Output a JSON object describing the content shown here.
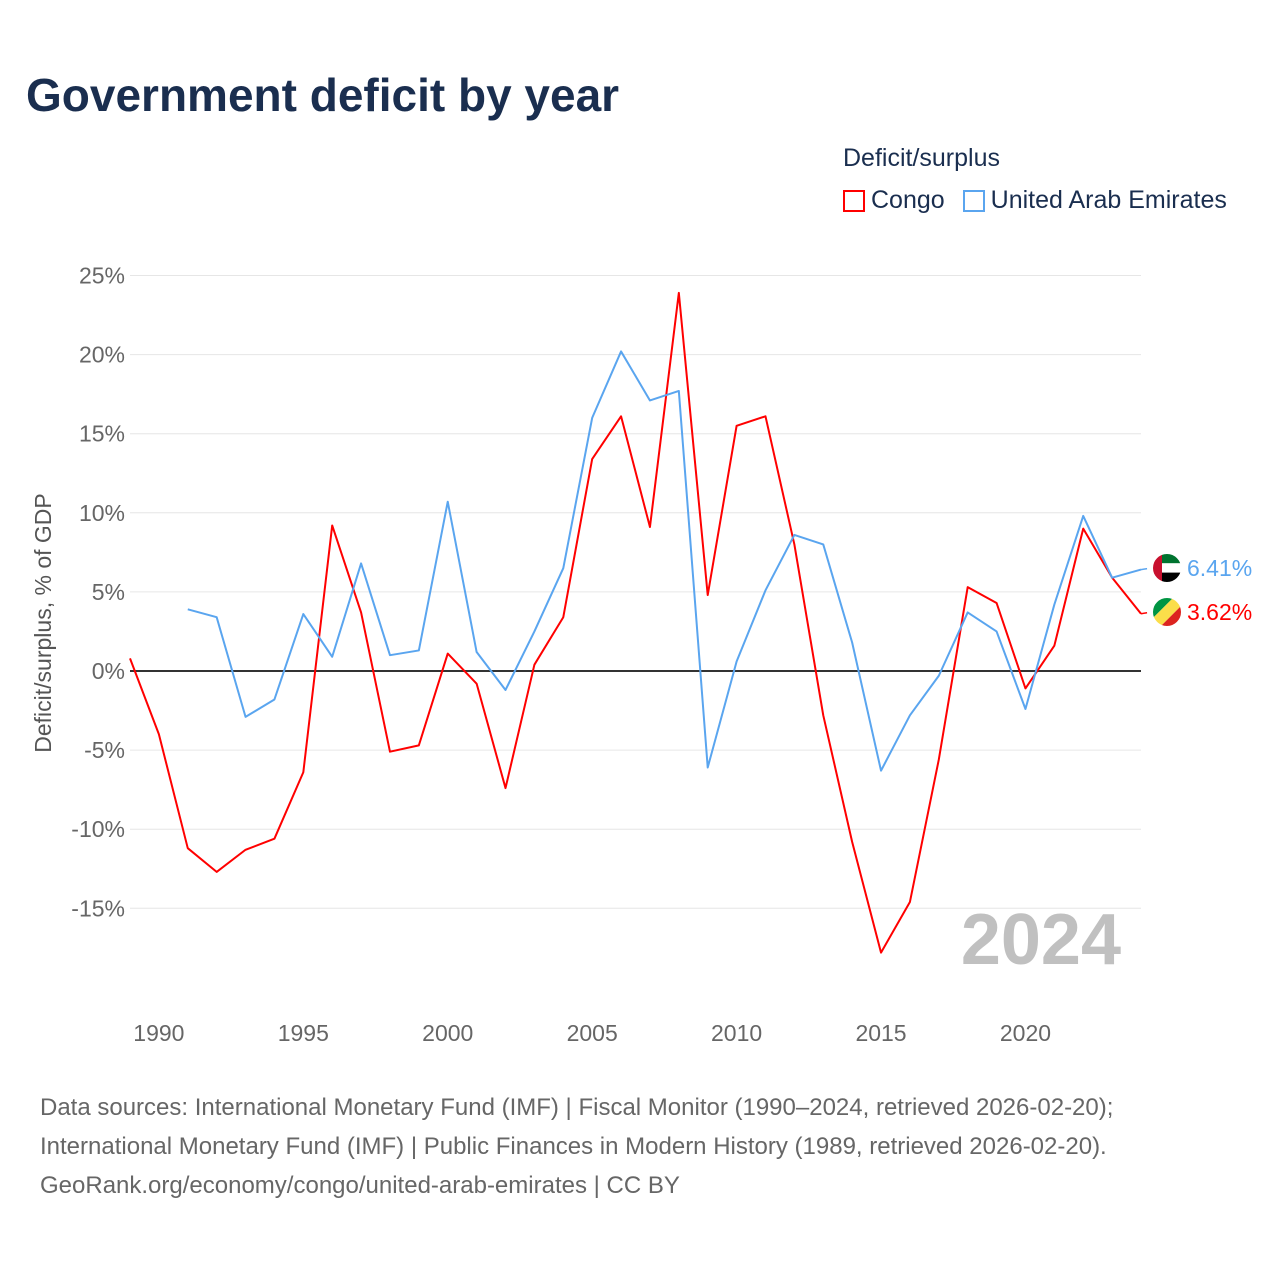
{
  "title": "Government deficit by year",
  "legend": {
    "title": "Deficit/surplus",
    "items": [
      {
        "name": "Congo",
        "color": "#ff0000"
      },
      {
        "name": "United Arab Emirates",
        "color": "#5aa5ef"
      }
    ]
  },
  "footer": [
    "Data sources: International Monetary Fund (IMF) | Fiscal Monitor (1990–2024, retrieved 2026-02-20);",
    "International Monetary Fund (IMF) | Public Finances in Modern History (1989, retrieved 2026-02-20).",
    "GeoRank.org/economy/congo/united-arab-emirates | CC BY"
  ],
  "chart_data": {
    "type": "line",
    "title": "Government deficit by year",
    "ylabel": "Deficit/surplus, % of GDP",
    "xlabel": "",
    "xlim": [
      1989,
      2024
    ],
    "ylim": [
      -20,
      25
    ],
    "yticks": [
      25,
      20,
      15,
      10,
      5,
      0,
      -5,
      -10,
      -15
    ],
    "ytick_labels": [
      "25%",
      "20%",
      "15%",
      "10%",
      "5%",
      "0%",
      "-5%",
      "-10%",
      "-15%"
    ],
    "xticks": [
      1990,
      1995,
      2000,
      2005,
      2010,
      2015,
      2020
    ],
    "xtick_labels": [
      "1990",
      "1995",
      "2000",
      "2005",
      "2010",
      "2015",
      "2020"
    ],
    "watermark_year": "2024",
    "series": [
      {
        "name": "Congo",
        "color": "#ff0000",
        "end_label": "3.62%",
        "start_year": 1989,
        "values": [
          0.8,
          -4.0,
          -11.2,
          -12.7,
          -11.3,
          -10.6,
          -6.4,
          9.2,
          3.7,
          -5.1,
          -4.7,
          1.1,
          -0.8,
          -7.4,
          0.4,
          3.4,
          13.4,
          16.1,
          9.1,
          23.9,
          4.8,
          15.5,
          16.1,
          8.0,
          -2.8,
          -10.8,
          -17.8,
          -14.6,
          -5.6,
          5.3,
          4.3,
          -1.1,
          1.6,
          9.0,
          5.9,
          3.62
        ]
      },
      {
        "name": "United Arab Emirates",
        "color": "#5aa5ef",
        "end_label": "6.41%",
        "start_year": 1991,
        "values": [
          3.9,
          3.4,
          -2.9,
          -1.8,
          3.6,
          0.9,
          6.8,
          1.0,
          1.3,
          10.7,
          1.2,
          -1.2,
          2.5,
          6.5,
          16.0,
          20.2,
          17.1,
          17.7,
          -6.1,
          0.6,
          5.1,
          8.6,
          8.0,
          1.8,
          -6.3,
          -2.8,
          -0.3,
          3.7,
          2.5,
          -2.4,
          4.2,
          9.8,
          5.9,
          6.41
        ]
      }
    ]
  }
}
